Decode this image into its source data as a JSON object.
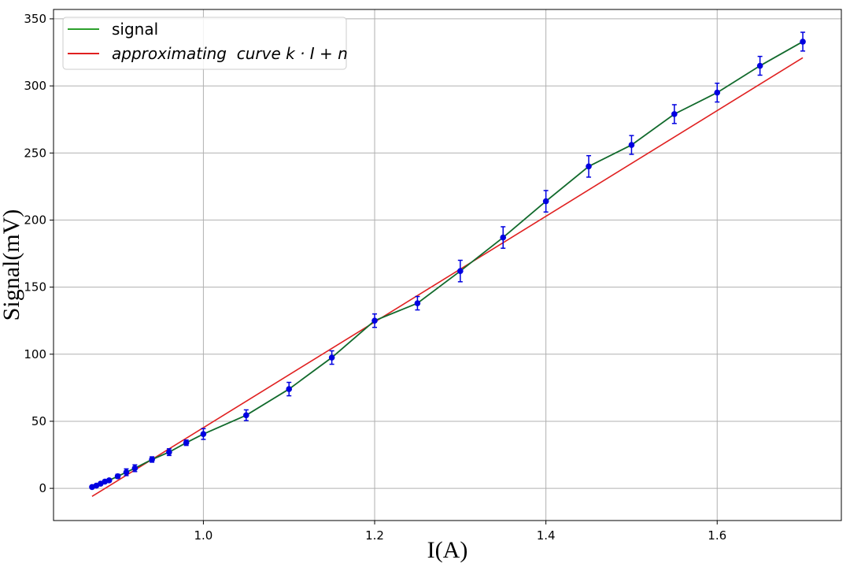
{
  "chart_data": {
    "type": "line",
    "xlabel": "I(A)",
    "ylabel": "Signal(mV)",
    "xlim": [
      0.825,
      1.745
    ],
    "ylim": [
      -24,
      357
    ],
    "grid": true,
    "legend_position": "top-left",
    "x_ticks": [
      1.0,
      1.2,
      1.4,
      1.6
    ],
    "x_tick_labels": [
      "1.0",
      "1.2",
      "1.4",
      "1.6"
    ],
    "y_ticks": [
      0,
      50,
      100,
      150,
      200,
      250,
      300,
      350
    ],
    "y_tick_labels": [
      "0",
      "50",
      "100",
      "150",
      "200",
      "250",
      "300",
      "350"
    ],
    "series": [
      {
        "name": "signal",
        "color": "#2ca02c",
        "points_color": "#0000e0",
        "x": [
          0.87,
          0.875,
          0.88,
          0.885,
          0.89,
          0.9,
          0.91,
          0.92,
          0.94,
          0.96,
          0.98,
          1.0,
          1.05,
          1.1,
          1.15,
          1.2,
          1.25,
          1.3,
          1.35,
          1.4,
          1.45,
          1.5,
          1.55,
          1.6,
          1.65,
          1.7
        ],
        "y": [
          1,
          2,
          3.5,
          5,
          6,
          9,
          12,
          15,
          21.5,
          27,
          34,
          40.5,
          54.5,
          74,
          97.5,
          125,
          138,
          162,
          187,
          214,
          240,
          256,
          279,
          295,
          315,
          333
        ],
        "yerr": [
          1,
          1,
          1,
          1,
          1,
          1.5,
          2.5,
          2.5,
          2,
          2.5,
          2,
          4,
          4,
          5,
          5,
          5,
          5,
          8,
          8,
          8,
          8,
          7,
          7,
          7,
          7,
          7
        ]
      },
      {
        "name": "approximating  curve k · I + n",
        "color": "#e02020",
        "x": [
          0.87,
          1.7
        ],
        "y": [
          -6,
          321
        ]
      }
    ]
  }
}
